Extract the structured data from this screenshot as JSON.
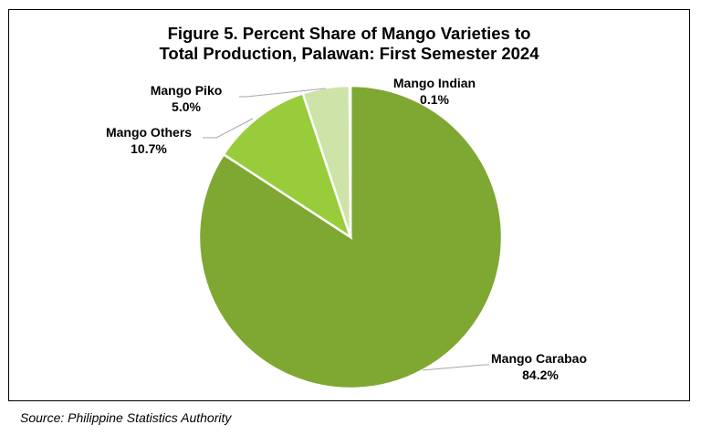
{
  "chart_data": {
    "type": "pie",
    "title_line1": "Figure 5. Percent Share of Mango Varieties to",
    "title_line2": "Total Production, Palawan: First Semester 2024",
    "slices": [
      {
        "label": "Mango Carabao",
        "value": 84.2,
        "value_text": "84.2%",
        "color": "#7ea832"
      },
      {
        "label": "Mango Others",
        "value": 10.7,
        "value_text": "10.7%",
        "color": "#99cc3a"
      },
      {
        "label": "Mango Piko",
        "value": 5.0,
        "value_text": "5.0%",
        "color": "#cde3a8"
      },
      {
        "label": "Mango Indian",
        "value": 0.1,
        "value_text": "0.1%",
        "color": "#b7d47a"
      }
    ],
    "start_angle": "12 o'clock",
    "direction": "clockwise"
  },
  "source": "Source: Philippine Statistics Authority"
}
